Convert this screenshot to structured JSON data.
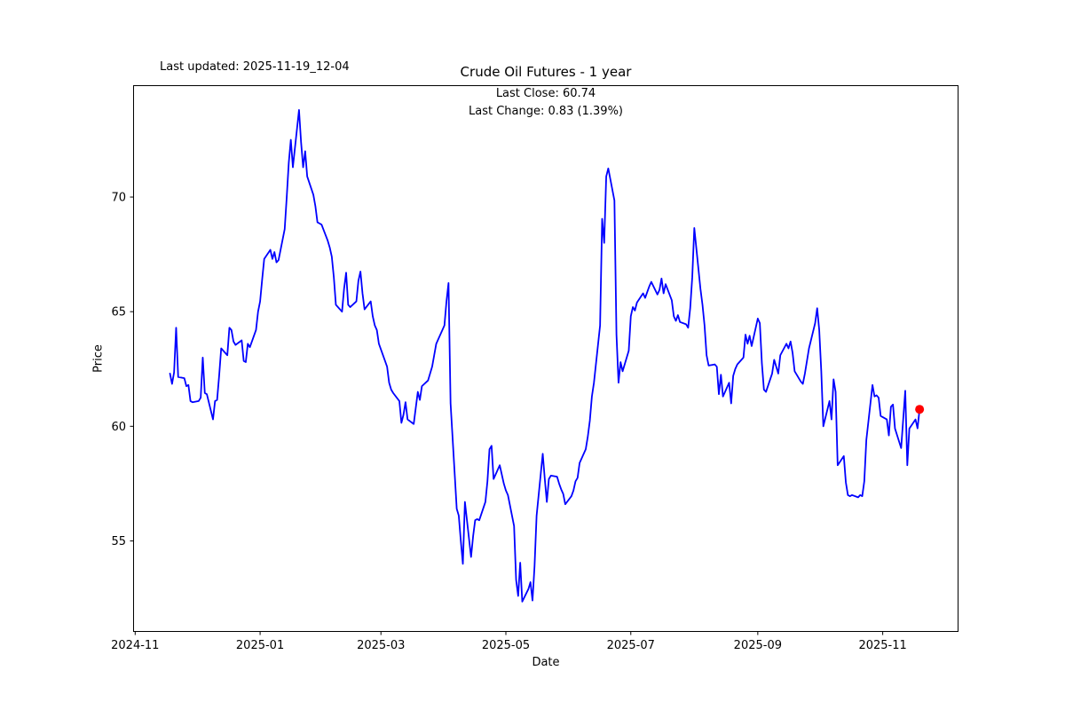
{
  "figure": {
    "last_updated": "Last updated: 2025-11-19_12-04",
    "title": "Crude Oil Futures - 1 year",
    "annotation": {
      "line1": "Last Close: 60.74",
      "line2": "Last Change: 0.83 (1.39%)"
    },
    "xlabel": "Date",
    "ylabel": "Price"
  },
  "chart_data": {
    "type": "line",
    "title": "Crude Oil Futures - 1 year",
    "xlabel": "Date",
    "ylabel": "Price",
    "grid": false,
    "legend": "none",
    "background": "#ffffff",
    "line_color": "#0000ff",
    "marker_color": "#ff0000",
    "axis_color": "#000000",
    "ylim": [
      51.03,
      74.88
    ],
    "xlim_dates": [
      "2024-10-31",
      "2025-12-08"
    ],
    "y_ticks": [
      55,
      60,
      65,
      70
    ],
    "x_ticks": [
      {
        "date": "2024-11-01",
        "label": "2024-11"
      },
      {
        "date": "2025-01-01",
        "label": "2025-01"
      },
      {
        "date": "2025-03-01",
        "label": "2025-03"
      },
      {
        "date": "2025-05-01",
        "label": "2025-05"
      },
      {
        "date": "2025-07-01",
        "label": "2025-07"
      },
      {
        "date": "2025-09-01",
        "label": "2025-09"
      },
      {
        "date": "2025-11-01",
        "label": "2025-11"
      }
    ],
    "last_close": 60.74,
    "last_change": "0.83 (1.39%)",
    "last_point": {
      "date": "2025-11-19",
      "price": 60.74,
      "marker": "red-dot"
    },
    "series": [
      {
        "name": "close",
        "start_date": "2024-11-18",
        "frequency": "weekdays",
        "prices": [
          62.3,
          61.85,
          62.35,
          64.3,
          62.15,
          62.1,
          61.75,
          61.8,
          61.1,
          61.05,
          61.1,
          61.25,
          63.0,
          61.45,
          61.4,
          60.3,
          61.1,
          61.15,
          62.2,
          63.4,
          63.1,
          64.3,
          64.2,
          63.7,
          63.55,
          63.75,
          62.85,
          62.8,
          63.6,
          63.45,
          64.2,
          65.0,
          65.45,
          66.4,
          67.3,
          67.7,
          67.3,
          67.6,
          67.15,
          67.25,
          68.6,
          70.0,
          71.5,
          72.5,
          71.3,
          73.8,
          72.4,
          71.3,
          72.0,
          70.9,
          70.1,
          69.6,
          68.9,
          68.85,
          68.8,
          68.1,
          67.8,
          67.4,
          66.5,
          65.3,
          65.0,
          66.0,
          66.7,
          65.3,
          65.2,
          65.45,
          66.35,
          66.75,
          65.8,
          65.1,
          65.45,
          64.8,
          64.4,
          64.2,
          63.6,
          62.85,
          62.6,
          61.9,
          61.6,
          61.45,
          61.1,
          60.15,
          60.5,
          61.05,
          60.3,
          60.1,
          60.8,
          61.5,
          61.15,
          61.75,
          62.0,
          62.3,
          62.6,
          63.1,
          63.6,
          64.2,
          64.4,
          65.45,
          66.25,
          61.0,
          56.4,
          56.1,
          55.0,
          54.0,
          56.7,
          54.3,
          55.2,
          55.9,
          55.95,
          55.9,
          56.7,
          57.6,
          59.0,
          59.15,
          57.7,
          58.3,
          57.9,
          57.5,
          57.2,
          57.0,
          55.65,
          53.3,
          52.6,
          54.05,
          52.35,
          52.9,
          53.2,
          52.4,
          53.9,
          56.1,
          58.8,
          57.7,
          56.7,
          57.7,
          57.85,
          57.8,
          57.5,
          57.25,
          57.05,
          56.6,
          56.95,
          57.2,
          57.6,
          57.75,
          58.4,
          59.0,
          59.55,
          60.25,
          61.3,
          61.9,
          64.4,
          69.05,
          68.0,
          70.9,
          71.25,
          69.85,
          64.0,
          61.9,
          62.8,
          62.4,
          63.3,
          64.8,
          65.2,
          65.05,
          65.4,
          65.8,
          65.6,
          65.85,
          66.1,
          66.3,
          65.75,
          65.95,
          66.45,
          65.8,
          66.2,
          65.5,
          64.8,
          64.6,
          64.85,
          64.55,
          64.45,
          64.3,
          65.15,
          66.5,
          68.65,
          66.0,
          65.3,
          64.4,
          63.1,
          62.65,
          62.7,
          62.6,
          61.4,
          62.25,
          61.3,
          61.9,
          61.0,
          62.2,
          62.5,
          62.7,
          63.0,
          64.0,
          63.6,
          63.95,
          63.5,
          64.7,
          64.5,
          62.75,
          61.6,
          61.5,
          62.3,
          62.9,
          62.6,
          62.3,
          63.1,
          63.6,
          63.4,
          63.7,
          63.2,
          62.4,
          61.95,
          61.85,
          62.3,
          62.85,
          63.4,
          64.5,
          65.15,
          64.2,
          62.4,
          60.0,
          61.1,
          60.3,
          62.05,
          61.5,
          58.3,
          58.7,
          57.55,
          57.0,
          56.95,
          57.0,
          56.9,
          57.0,
          56.95,
          57.6,
          59.4,
          61.8,
          61.3,
          61.35,
          61.25,
          60.45,
          60.3,
          59.6,
          60.85,
          60.95,
          59.9,
          59.05,
          60.3,
          61.55,
          58.3,
          59.9,
          60.3,
          59.91,
          60.74
        ]
      }
    ]
  }
}
